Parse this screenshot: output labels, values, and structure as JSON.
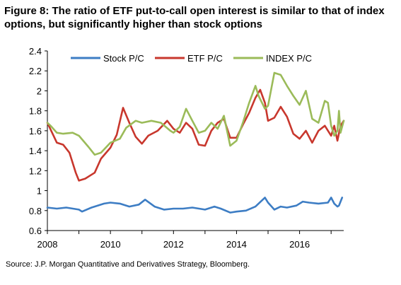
{
  "title": "Figure 8: The ratio of ETF put-to-call open interest is similar to that of index options, but significantly higher than stock options",
  "source": "Source: J.P. Morgan Quantitative and Derivatives Strategy, Bloomberg.",
  "chart_data": {
    "type": "line",
    "title": "Figure 8: The ratio of ETF put-to-call open interest is similar to that of index options, but significantly higher than stock options",
    "xlim": [
      2008,
      2017.4
    ],
    "ylim": [
      0.6,
      2.4
    ],
    "x_ticks": [
      "2008",
      "2010",
      "2012",
      "2014",
      "2016"
    ],
    "y_ticks": [
      "0.6",
      "0.8",
      "1",
      "1.2",
      "1.4",
      "1.6",
      "1.8",
      "2",
      "2.2",
      "2.4"
    ],
    "grid": false,
    "legend_position": "top",
    "series": [
      {
        "name": "Stock P/C",
        "color": "#3D7DC4",
        "x": [
          2008.0,
          2008.3,
          2008.6,
          2009.0,
          2009.1,
          2009.4,
          2009.8,
          2010.0,
          2010.3,
          2010.6,
          2010.9,
          2011.1,
          2011.4,
          2011.7,
          2012.0,
          2012.3,
          2012.6,
          2013.0,
          2013.3,
          2013.5,
          2013.8,
          2014.0,
          2014.3,
          2014.6,
          2014.9,
          2015.0,
          2015.2,
          2015.4,
          2015.6,
          2015.9,
          2016.1,
          2016.3,
          2016.6,
          2016.9,
          2017.0,
          2017.1,
          2017.2,
          2017.25,
          2017.35
        ],
        "values": [
          0.83,
          0.82,
          0.83,
          0.81,
          0.79,
          0.83,
          0.87,
          0.88,
          0.87,
          0.84,
          0.86,
          0.91,
          0.84,
          0.81,
          0.82,
          0.82,
          0.83,
          0.81,
          0.84,
          0.82,
          0.78,
          0.79,
          0.8,
          0.84,
          0.93,
          0.88,
          0.81,
          0.84,
          0.83,
          0.85,
          0.89,
          0.88,
          0.87,
          0.88,
          0.93,
          0.87,
          0.84,
          0.85,
          0.93
        ]
      },
      {
        "name": "ETF P/C",
        "color": "#C8372D",
        "x": [
          2008.0,
          2008.15,
          2008.3,
          2008.5,
          2008.7,
          2008.9,
          2009.0,
          2009.2,
          2009.5,
          2009.7,
          2010.0,
          2010.2,
          2010.4,
          2010.6,
          2010.8,
          2011.0,
          2011.2,
          2011.5,
          2011.8,
          2012.0,
          2012.2,
          2012.4,
          2012.6,
          2012.8,
          2013.0,
          2013.2,
          2013.4,
          2013.6,
          2013.8,
          2014.0,
          2014.2,
          2014.4,
          2014.6,
          2014.75,
          2014.9,
          2015.0,
          2015.2,
          2015.4,
          2015.6,
          2015.8,
          2016.0,
          2016.2,
          2016.4,
          2016.6,
          2016.8,
          2017.0,
          2017.1,
          2017.2,
          2017.3,
          2017.4
        ],
        "values": [
          1.68,
          1.58,
          1.48,
          1.46,
          1.38,
          1.18,
          1.1,
          1.12,
          1.18,
          1.32,
          1.43,
          1.56,
          1.83,
          1.68,
          1.54,
          1.47,
          1.55,
          1.6,
          1.7,
          1.62,
          1.58,
          1.68,
          1.62,
          1.46,
          1.45,
          1.6,
          1.68,
          1.72,
          1.53,
          1.53,
          1.66,
          1.78,
          1.93,
          2.01,
          1.88,
          1.7,
          1.73,
          1.84,
          1.74,
          1.57,
          1.52,
          1.6,
          1.48,
          1.6,
          1.65,
          1.55,
          1.65,
          1.5,
          1.65,
          1.7
        ]
      },
      {
        "name": "INDEX P/C",
        "color": "#9BBB59",
        "x": [
          2008.0,
          2008.1,
          2008.3,
          2008.5,
          2008.8,
          2009.0,
          2009.3,
          2009.5,
          2009.7,
          2010.0,
          2010.3,
          2010.5,
          2010.8,
          2011.0,
          2011.3,
          2011.6,
          2011.9,
          2012.0,
          2012.2,
          2012.4,
          2012.6,
          2012.8,
          2013.0,
          2013.2,
          2013.4,
          2013.6,
          2013.8,
          2014.0,
          2014.2,
          2014.4,
          2014.6,
          2014.7,
          2014.9,
          2015.0,
          2015.2,
          2015.4,
          2015.6,
          2015.8,
          2016.0,
          2016.2,
          2016.4,
          2016.6,
          2016.8,
          2016.9,
          2017.0,
          2017.1,
          2017.2,
          2017.25,
          2017.3,
          2017.4
        ],
        "values": [
          1.68,
          1.65,
          1.58,
          1.57,
          1.58,
          1.55,
          1.44,
          1.36,
          1.38,
          1.48,
          1.52,
          1.63,
          1.7,
          1.68,
          1.7,
          1.68,
          1.6,
          1.58,
          1.64,
          1.82,
          1.7,
          1.58,
          1.6,
          1.68,
          1.62,
          1.75,
          1.45,
          1.5,
          1.68,
          1.88,
          2.05,
          1.95,
          1.82,
          1.85,
          2.18,
          2.16,
          2.05,
          1.95,
          1.86,
          2.0,
          1.72,
          1.68,
          1.9,
          1.88,
          1.65,
          1.55,
          1.6,
          1.8,
          1.58,
          1.7
        ]
      }
    ]
  }
}
